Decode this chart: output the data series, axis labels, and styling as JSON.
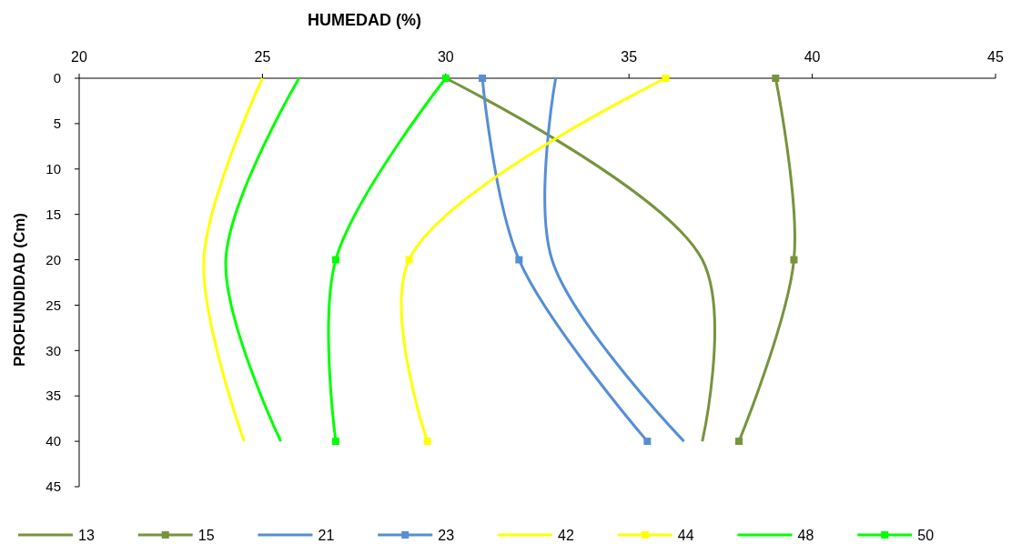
{
  "chart_data": {
    "type": "line",
    "xlabel": "HUMEDAD  (%)",
    "ylabel": "PROFUNDIDAD (Cm)",
    "xlim": [
      20,
      45
    ],
    "xticks": [
      20,
      25,
      30,
      35,
      40,
      45
    ],
    "ylim": [
      45,
      0
    ],
    "yticks": [
      0,
      5,
      10,
      15,
      20,
      25,
      30,
      35,
      40,
      45
    ],
    "grid": false,
    "legend": "bottom",
    "line_style": "solid",
    "series": [
      {
        "name": "13",
        "color": "#77933c",
        "marker": "none",
        "x": [
          30,
          37,
          37
        ],
        "values": [
          0,
          20,
          40
        ]
      },
      {
        "name": "15",
        "color": "#77933c",
        "marker": "square",
        "x": [
          39,
          39.5,
          38
        ],
        "values": [
          0,
          20,
          40
        ]
      },
      {
        "name": "21",
        "color": "#558ed5",
        "marker": "none",
        "x": [
          33,
          32.9,
          36.5
        ],
        "values": [
          0,
          20,
          40
        ]
      },
      {
        "name": "23",
        "color": "#558ed5",
        "marker": "square",
        "x": [
          31,
          32,
          35.5
        ],
        "values": [
          0,
          20,
          40
        ]
      },
      {
        "name": "42",
        "color": "#ffff00",
        "marker": "none",
        "x": [
          25,
          23.4,
          24.5
        ],
        "values": [
          0,
          20,
          40
        ]
      },
      {
        "name": "44",
        "color": "#ffff00",
        "marker": "square",
        "x": [
          36,
          29,
          29.5
        ],
        "values": [
          0,
          20,
          40
        ]
      },
      {
        "name": "48",
        "color": "#00ff00",
        "marker": "none",
        "x": [
          26,
          24,
          25.5
        ],
        "values": [
          0,
          20,
          40
        ]
      },
      {
        "name": "50",
        "color": "#00ff00",
        "marker": "square",
        "x": [
          30,
          27,
          27
        ],
        "values": [
          0,
          20,
          40
        ]
      }
    ]
  }
}
